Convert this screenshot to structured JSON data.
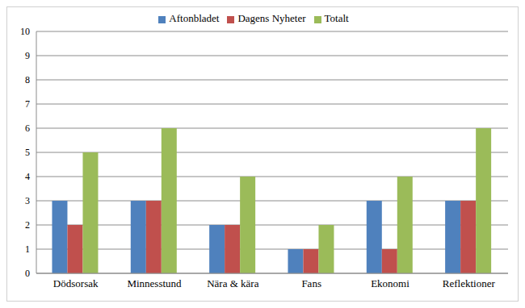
{
  "chart_data": {
    "type": "bar",
    "categories": [
      "Dödsorsak",
      "Minnesstund",
      "Nära & kära",
      "Fans",
      "Ekonomi",
      "Reflektioner"
    ],
    "series": [
      {
        "name": "Aftonbladet",
        "color": "#4f81bd",
        "values": [
          3,
          3,
          2,
          1,
          3,
          3
        ]
      },
      {
        "name": "Dagens Nyheter",
        "color": "#c0504d",
        "values": [
          2,
          3,
          2,
          1,
          1,
          3
        ]
      },
      {
        "name": "Totalt",
        "color": "#9bbb59",
        "values": [
          5,
          6,
          4,
          2,
          4,
          6
        ]
      }
    ],
    "ylim": [
      0,
      10
    ],
    "yticks": [
      0,
      1,
      2,
      3,
      4,
      5,
      6,
      7,
      8,
      9,
      10
    ],
    "grid": true,
    "legend": "top"
  }
}
